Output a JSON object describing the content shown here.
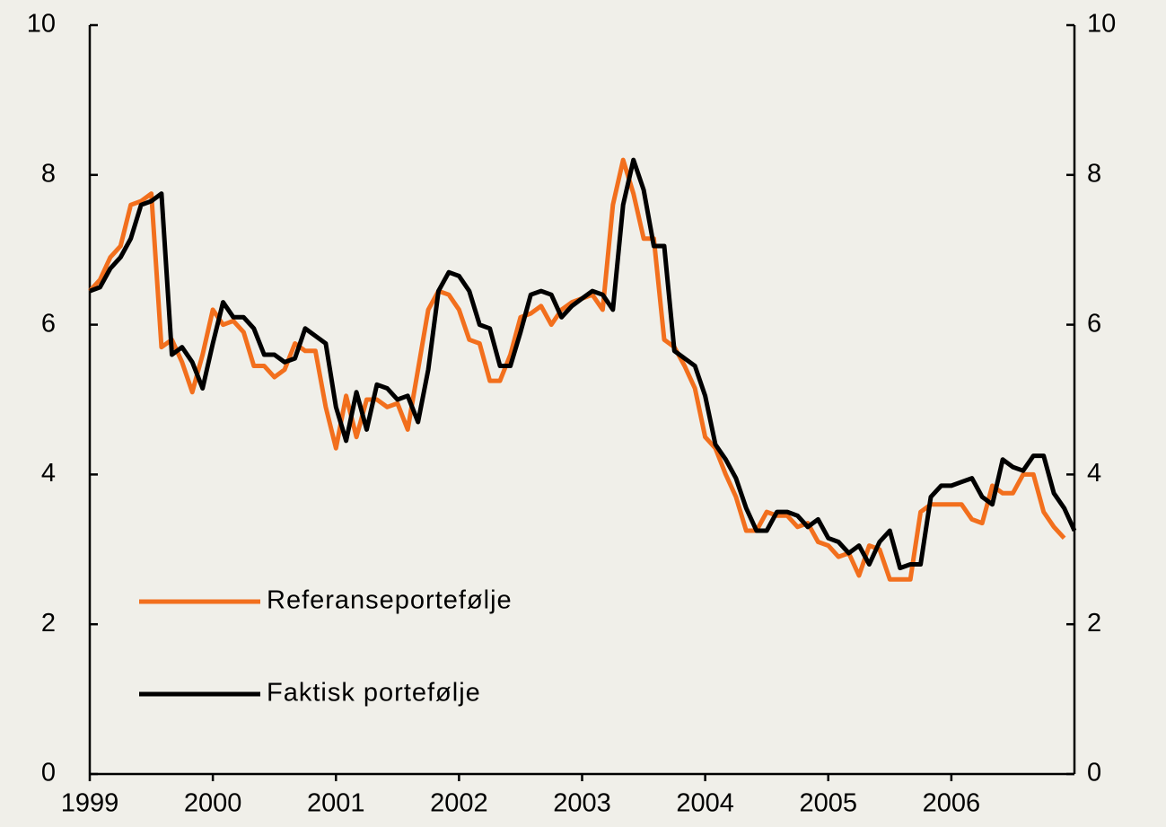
{
  "chart_data": {
    "type": "line",
    "x": [
      1999,
      1999.083,
      1999.167,
      1999.25,
      1999.333,
      1999.417,
      1999.5,
      1999.583,
      1999.667,
      1999.75,
      1999.833,
      1999.917,
      2000,
      2000.083,
      2000.167,
      2000.25,
      2000.333,
      2000.417,
      2000.5,
      2000.583,
      2000.667,
      2000.75,
      2000.833,
      2000.917,
      2001,
      2001.083,
      2001.167,
      2001.25,
      2001.333,
      2001.417,
      2001.5,
      2001.583,
      2001.667,
      2001.75,
      2001.833,
      2001.917,
      2002,
      2002.083,
      2002.167,
      2002.25,
      2002.333,
      2002.417,
      2002.5,
      2002.583,
      2002.667,
      2002.75,
      2002.833,
      2002.917,
      2003,
      2003.083,
      2003.167,
      2003.25,
      2003.333,
      2003.417,
      2003.5,
      2003.583,
      2003.667,
      2003.75,
      2003.833,
      2003.917,
      2004,
      2004.083,
      2004.167,
      2004.25,
      2004.333,
      2004.417,
      2004.5,
      2004.583,
      2004.667,
      2004.75,
      2004.833,
      2004.917,
      2005,
      2005.083,
      2005.167,
      2005.25,
      2005.333,
      2005.417,
      2005.5,
      2005.583,
      2005.667,
      2005.75,
      2005.833,
      2005.917,
      2006,
      2006.083,
      2006.167,
      2006.25,
      2006.333,
      2006.417,
      2006.5,
      2006.583,
      2006.667,
      2006.75,
      2006.833,
      2006.917,
      2007
    ],
    "series": [
      {
        "name": "Referanseportefølje",
        "color": "#f26f1d",
        "values": [
          6.45,
          6.6,
          6.9,
          7.05,
          7.6,
          7.65,
          7.75,
          5.7,
          5.8,
          5.5,
          5.1,
          5.6,
          6.2,
          6.0,
          6.05,
          5.9,
          5.45,
          5.45,
          5.3,
          5.4,
          5.75,
          5.65,
          5.65,
          4.9,
          4.35,
          5.05,
          4.5,
          5.0,
          5.0,
          4.9,
          4.95,
          4.6,
          5.4,
          6.2,
          6.45,
          6.4,
          6.2,
          5.8,
          5.75,
          5.25,
          5.25,
          5.6,
          6.1,
          6.15,
          6.25,
          6.0,
          6.2,
          6.3,
          6.35,
          6.4,
          6.2,
          7.6,
          8.2,
          7.75,
          7.15,
          7.15,
          5.8,
          5.7,
          5.45,
          5.15,
          4.5,
          4.35,
          4.0,
          3.7,
          3.25,
          3.25,
          3.5,
          3.45,
          3.45,
          3.3,
          3.35,
          3.1,
          3.05,
          2.9,
          2.95,
          2.65,
          3.05,
          3.0,
          2.6,
          2.6,
          2.6,
          3.5,
          3.6,
          3.6,
          3.6,
          3.6,
          3.4,
          3.35,
          3.85,
          3.75,
          3.75,
          4.0,
          4.0,
          3.5,
          3.3,
          3.15,
          null
        ]
      },
      {
        "name": "Faktisk portefølje",
        "color": "#000000",
        "values": [
          6.45,
          6.5,
          6.75,
          6.9,
          7.15,
          7.6,
          7.65,
          7.75,
          5.6,
          5.7,
          5.5,
          5.15,
          5.75,
          6.3,
          6.1,
          6.1,
          5.95,
          5.6,
          5.6,
          5.5,
          5.55,
          5.95,
          5.85,
          5.75,
          4.9,
          4.45,
          5.1,
          4.6,
          5.2,
          5.15,
          5.0,
          5.05,
          4.7,
          5.4,
          6.45,
          6.7,
          6.65,
          6.45,
          6.0,
          5.95,
          5.45,
          5.45,
          5.9,
          6.4,
          6.45,
          6.4,
          6.1,
          6.25,
          6.35,
          6.45,
          6.4,
          6.2,
          7.6,
          8.2,
          7.8,
          7.05,
          7.05,
          5.65,
          5.55,
          5.45,
          5.05,
          4.4,
          4.2,
          3.95,
          3.55,
          3.25,
          3.25,
          3.5,
          3.5,
          3.45,
          3.3,
          3.4,
          3.15,
          3.1,
          2.95,
          3.05,
          2.8,
          3.1,
          3.25,
          2.75,
          2.8,
          2.8,
          3.7,
          3.85,
          3.85,
          3.9,
          3.95,
          3.7,
          3.6,
          4.2,
          4.1,
          4.05,
          4.25,
          4.25,
          3.75,
          3.55,
          3.25
        ]
      }
    ],
    "xlim": [
      1999,
      2007
    ],
    "xticks": [
      1999,
      2000,
      2001,
      2002,
      2003,
      2004,
      2005,
      2006
    ],
    "ylim": [
      0,
      10
    ],
    "yticks": [
      0,
      2,
      4,
      6,
      8,
      10
    ],
    "y2lim": [
      0,
      10
    ],
    "y2ticks": [
      0,
      2,
      4,
      6,
      8,
      10
    ],
    "grid": false,
    "legend": "lower left"
  }
}
